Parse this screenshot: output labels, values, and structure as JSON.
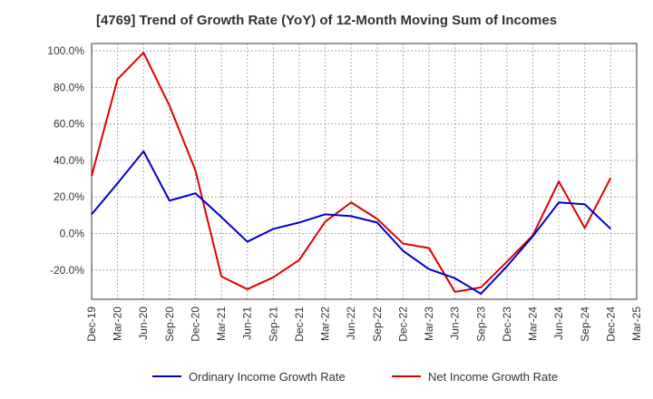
{
  "chart_data": {
    "type": "line",
    "title": "[4769]  Trend of Growth Rate (YoY) of 12-Month Moving Sum of Incomes",
    "x_categories": [
      "Dec-19",
      "Mar-20",
      "Jun-20",
      "Sep-20",
      "Dec-20",
      "Mar-21",
      "Jun-21",
      "Sep-21",
      "Dec-21",
      "Mar-22",
      "Jun-22",
      "Sep-22",
      "Dec-22",
      "Mar-23",
      "Jun-23",
      "Sep-23",
      "Dec-23",
      "Mar-24",
      "Jun-24",
      "Sep-24",
      "Dec-24",
      "Mar-25"
    ],
    "y_ticks": [
      "100.0%",
      "80.0%",
      "60.0%",
      "40.0%",
      "20.0%",
      "0.0%",
      "-20.0%"
    ],
    "y_tick_values": [
      100,
      80,
      60,
      40,
      20,
      0,
      -20
    ],
    "ylim": [
      -36,
      104
    ],
    "grid": true,
    "legend_position": "bottom",
    "series": [
      {
        "name": "Ordinary Income Growth Rate",
        "color": "#0000cc",
        "values": [
          10.5,
          27.5,
          45.0,
          18.0,
          22.0,
          9.0,
          -4.5,
          2.5,
          6.0,
          10.5,
          9.5,
          6.0,
          -9.5,
          -19.5,
          -24.5,
          -33.0,
          -18.0,
          -1.5,
          17.0,
          16.0,
          2.5,
          null
        ]
      },
      {
        "name": "Net Income Growth Rate",
        "color": "#dd0000",
        "values": [
          31.5,
          84.5,
          99.0,
          70.0,
          34.5,
          -23.5,
          -30.5,
          -24.0,
          -14.5,
          6.5,
          17.0,
          8.0,
          -5.5,
          -8.0,
          -32.0,
          -29.5,
          -15.5,
          -1.0,
          28.5,
          3.0,
          30.5,
          null
        ]
      }
    ]
  }
}
